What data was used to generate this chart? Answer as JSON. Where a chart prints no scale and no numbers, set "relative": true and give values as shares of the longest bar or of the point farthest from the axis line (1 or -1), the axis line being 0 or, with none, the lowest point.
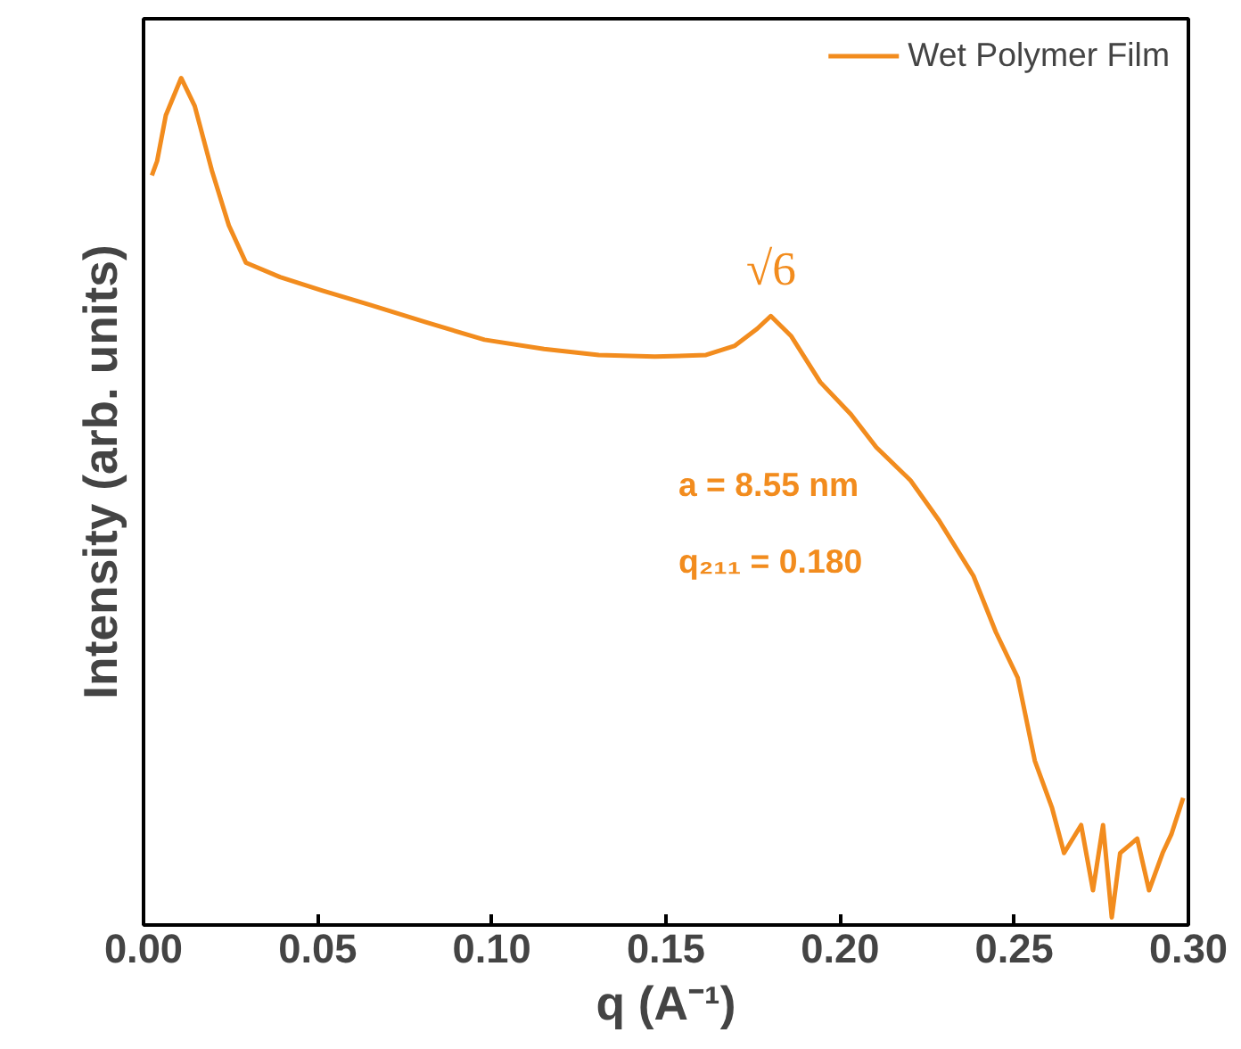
{
  "chart_data": {
    "type": "line",
    "relative": true,
    "xlabel": "q (A⁻¹)",
    "ylabel": "Intensity (arb. units)",
    "xlim": [
      0,
      0.3
    ],
    "xticks": [
      {
        "value": 0,
        "label": "0.00"
      },
      {
        "value": 0.05,
        "label": "0.05"
      },
      {
        "value": 0.1,
        "label": "0.10"
      },
      {
        "value": 0.15,
        "label": "0.15"
      },
      {
        "value": 0.2,
        "label": "0.20"
      },
      {
        "value": 0.25,
        "label": "0.25"
      },
      {
        "value": 0.3,
        "label": "0.30"
      }
    ],
    "legend": "top right",
    "grid": false,
    "marker": "none",
    "line_style": "solid",
    "series": [
      {
        "name": "Wet Polymer Film",
        "color": "#f28c1e",
        "x": [
          0.0024,
          0.0039,
          0.0064,
          0.0108,
          0.0147,
          0.0196,
          0.0245,
          0.0294,
          0.0392,
          0.0514,
          0.0651,
          0.0808,
          0.0979,
          0.115,
          0.1307,
          0.1468,
          0.1615,
          0.1698,
          0.1762,
          0.1801,
          0.186,
          0.1943,
          0.2031,
          0.2104,
          0.2202,
          0.2285,
          0.2383,
          0.2447,
          0.251,
          0.2559,
          0.2608,
          0.2643,
          0.2692,
          0.2726,
          0.2755,
          0.278,
          0.2804,
          0.2853,
          0.2887,
          0.2926,
          0.2951,
          0.2985
        ],
        "values": [
          0.885,
          0.902,
          0.956,
          1.0,
          0.967,
          0.891,
          0.826,
          0.782,
          0.765,
          0.749,
          0.732,
          0.712,
          0.691,
          0.68,
          0.673,
          0.671,
          0.673,
          0.684,
          0.704,
          0.719,
          0.695,
          0.641,
          0.603,
          0.564,
          0.525,
          0.477,
          0.412,
          0.346,
          0.292,
          0.194,
          0.139,
          0.085,
          0.118,
          0.041,
          0.118,
          0.009,
          0.085,
          0.102,
          0.041,
          0.085,
          0.107,
          0.15
        ]
      }
    ],
    "annotations": [
      "√6",
      "a = 8.55 nm",
      "q₂₁₁ = 0.180"
    ]
  }
}
